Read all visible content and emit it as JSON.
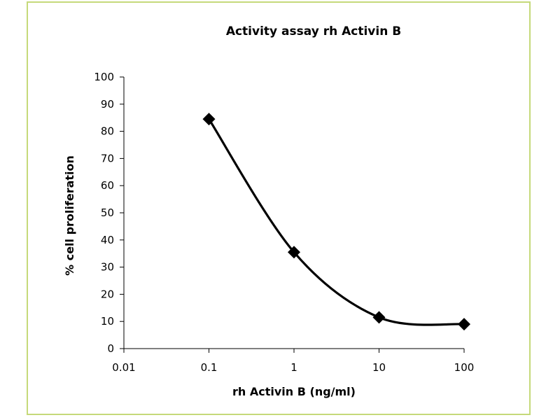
{
  "colors": {
    "frame_border": "#c5d97a",
    "series": "#000000"
  },
  "chart_data": {
    "type": "line",
    "title": "Activity assay rh Activin B",
    "xlabel": "rh Activin B (ng/ml)",
    "ylabel": "% cell proliferation",
    "x_scale": "log",
    "xlim": [
      0.01,
      100
    ],
    "ylim": [
      0,
      100
    ],
    "x_ticks": [
      "0.01",
      "0.1",
      "1",
      "10",
      "100"
    ],
    "y_ticks": [
      "0",
      "10",
      "20",
      "30",
      "40",
      "50",
      "60",
      "70",
      "80",
      "90",
      "100"
    ],
    "grid": false,
    "legend": false,
    "marker": "diamond",
    "smoothed": true,
    "series": [
      {
        "x": [
          0.1,
          1,
          10,
          100
        ],
        "y": [
          84.5,
          35.5,
          11.5,
          9
        ]
      }
    ]
  }
}
